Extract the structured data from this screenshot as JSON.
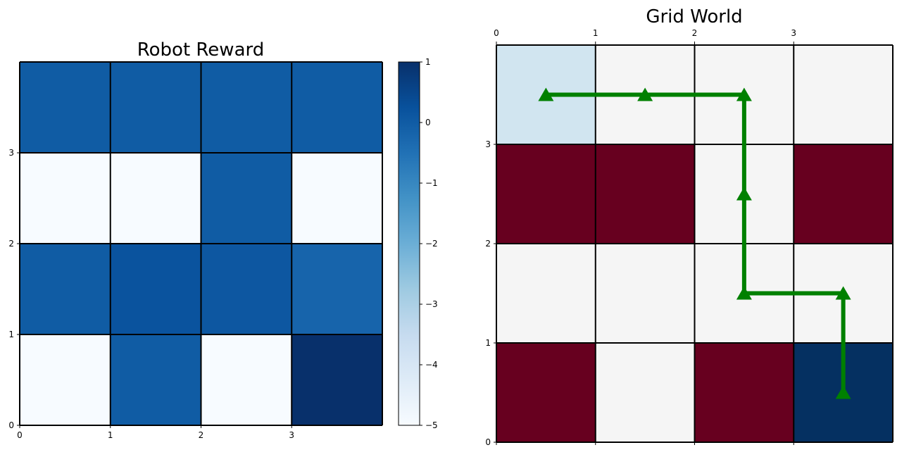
{
  "chart_data": [
    {
      "type": "heatmap",
      "title": "Robot Reward",
      "grid": {
        "rows_top_to_bottom": [
          [
            0,
            0,
            0,
            0
          ],
          [
            -5,
            -5,
            0,
            -5
          ],
          [
            0,
            0.2,
            0.1,
            -0.2
          ],
          [
            -5,
            0,
            -5,
            1
          ]
        ]
      },
      "xticks": [
        "0",
        "1",
        "2",
        "3"
      ],
      "yticks": [
        "0",
        "1",
        "2",
        "3"
      ],
      "colorbar": {
        "range": [
          -5,
          1
        ],
        "ticks": [
          "1",
          "0",
          "−1",
          "−2",
          "−3",
          "−4",
          "−5"
        ],
        "colormap": "Blues"
      }
    },
    {
      "type": "heatmap",
      "title": "Grid World",
      "grid": {
        "rows_top_to_bottom": [
          [
            "start",
            "empty",
            "empty",
            "empty"
          ],
          [
            "obstacle",
            "obstacle",
            "empty",
            "obstacle"
          ],
          [
            "empty",
            "empty",
            "empty",
            "empty"
          ],
          [
            "obstacle",
            "empty",
            "obstacle",
            "goal"
          ]
        ]
      },
      "cell_colors": {
        "start": "#d1e5f0",
        "empty": "#f5f5f5",
        "obstacle": "#67001f",
        "goal": "#053061"
      },
      "xticks": [
        "0",
        "1",
        "2",
        "3"
      ],
      "yticks": [
        "0",
        "1",
        "2",
        "3"
      ],
      "path": {
        "color": "#008000",
        "points": [
          [
            0.5,
            3.5
          ],
          [
            1.5,
            3.5
          ],
          [
            2.5,
            3.5
          ],
          [
            2.5,
            2.5
          ],
          [
            2.5,
            1.5
          ],
          [
            3.5,
            1.5
          ],
          [
            3.5,
            0.5
          ]
        ]
      }
    }
  ]
}
